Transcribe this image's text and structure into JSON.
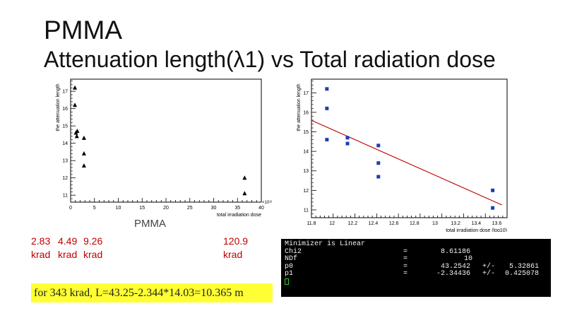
{
  "slide": {
    "title_line1": "PMMA",
    "title_line2": "Attenuation length(λ1) vs Total radiation dose",
    "under_left_chart": "PMMA",
    "doses": [
      {
        "value": "2.83",
        "unit": "krad"
      },
      {
        "value": "4.49",
        "unit": "krad"
      },
      {
        "value": "9.26",
        "unit": "krad"
      },
      {
        "value": "120.9",
        "unit": "krad"
      }
    ],
    "highlight_text": "for 343 krad, L=43.25-2.344*14.03=10.365 m"
  },
  "terminal": {
    "header": "Minimizer is Linear",
    "rows": [
      {
        "name": "Chi2",
        "eq": "=",
        "value": "8.61186",
        "pm": "",
        "err": ""
      },
      {
        "name": "NDf",
        "eq": "=",
        "value": "10",
        "pm": "",
        "err": ""
      },
      {
        "name": "p0",
        "eq": "=",
        "value": "43.2542",
        "pm": "+/-",
        "err": "5.32861"
      },
      {
        "name": "p1",
        "eq": "=",
        "value": "-2.34436",
        "pm": "+/-",
        "err": "0.425078"
      }
    ]
  },
  "colors": {
    "dose_text": "#c00000",
    "fit_line": "#c00000",
    "marker_right": "#1f3fb0",
    "marker_left": "#000000",
    "highlight": "#ffff33"
  },
  "chart_data": [
    {
      "type": "scatter",
      "marker": "triangle",
      "title": "",
      "xlabel": "total irradiation dose",
      "ylabel": "the attenuation length",
      "x_exponent": "×10¹²",
      "xlim": [
        0,
        40
      ],
      "ylim": [
        10.6,
        17.7
      ],
      "xticks": [
        0,
        5,
        10,
        15,
        20,
        25,
        30,
        35,
        40
      ],
      "yticks": [
        11,
        12,
        13,
        14,
        15,
        16,
        17
      ],
      "points": [
        {
          "x": 0.9,
          "y": 17.2
        },
        {
          "x": 0.9,
          "y": 16.2
        },
        {
          "x": 1.1,
          "y": 14.6
        },
        {
          "x": 1.4,
          "y": 14.7
        },
        {
          "x": 1.3,
          "y": 14.4
        },
        {
          "x": 2.8,
          "y": 14.3
        },
        {
          "x": 2.8,
          "y": 13.4
        },
        {
          "x": 2.8,
          "y": 12.7
        },
        {
          "x": 36.5,
          "y": 12.0
        },
        {
          "x": 36.5,
          "y": 11.1
        }
      ]
    },
    {
      "type": "scatter",
      "marker": "square",
      "title": "",
      "xlabel": "total irradiation dose (log10)",
      "ylabel": "the attenuation length",
      "xlim": [
        11.8,
        13.7
      ],
      "ylim": [
        10.6,
        17.7
      ],
      "xticks": [
        11.8,
        12,
        12.2,
        12.4,
        12.6,
        12.8,
        13,
        13.2,
        13.4,
        13.6
      ],
      "yticks": [
        11,
        12,
        13,
        14,
        15,
        16,
        17
      ],
      "points": [
        {
          "x": 11.95,
          "y": 17.2
        },
        {
          "x": 11.95,
          "y": 16.2
        },
        {
          "x": 11.95,
          "y": 14.6
        },
        {
          "x": 12.15,
          "y": 14.7
        },
        {
          "x": 12.15,
          "y": 14.4
        },
        {
          "x": 12.45,
          "y": 14.3
        },
        {
          "x": 12.45,
          "y": 13.4
        },
        {
          "x": 12.45,
          "y": 12.7
        },
        {
          "x": 13.56,
          "y": 12.0
        },
        {
          "x": 13.56,
          "y": 11.1
        }
      ],
      "fit": {
        "p0": 43.2542,
        "p1": -2.34436
      }
    }
  ]
}
